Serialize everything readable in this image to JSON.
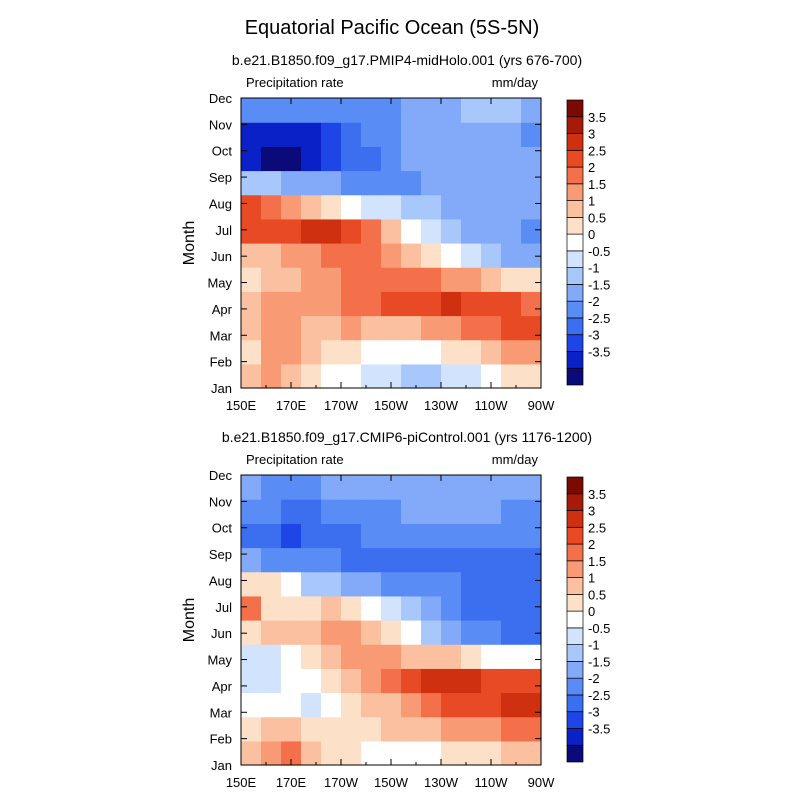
{
  "title": "Equatorial Pacific Ocean (5S-5N)",
  "colors": {
    "scale": [
      "#0a0a78",
      "#0a21c8",
      "#1e46e6",
      "#3c6ef0",
      "#5a8cf5",
      "#82aaf8",
      "#a8c8fb",
      "#d2e3fd",
      "#ffffff",
      "#fde0c8",
      "#fbc0a0",
      "#f89a74",
      "#f3704a",
      "#e84a25",
      "#cf3010",
      "#a81a08",
      "#7a0a02"
    ]
  },
  "chart_data": [
    {
      "type": "heatmap",
      "name": "panel-top",
      "subtitle": "b.e21.B1850.f09_g17.PMIP4-midHolo.001 (yrs 676-700)",
      "left_label": "Precipitation rate",
      "right_label": "mm/day",
      "ylabel": "Month",
      "xticks": [
        "150E",
        "170E",
        "170W",
        "150W",
        "130W",
        "110W",
        "90W"
      ],
      "yticks": [
        "Jan",
        "Feb",
        "Mar",
        "Apr",
        "May",
        "Jun",
        "Jul",
        "Aug",
        "Sep",
        "Oct",
        "Nov",
        "Dec"
      ],
      "colorbar_labels": [
        "3.5",
        "3",
        "2.5",
        "2",
        "1.5",
        "1",
        "0.5",
        "0",
        "-0.5",
        "-1",
        "-1.5",
        "-2",
        "-2.5",
        "-3",
        "-3.5"
      ],
      "values": [
        [
          1.2,
          1.8,
          1.5,
          0.8,
          0.4,
          0.2,
          -0.1,
          -0.4,
          -0.6,
          -0.5,
          -0.4,
          -0.1,
          0.3,
          0.6,
          1.0
        ],
        [
          1.0,
          1.6,
          2.0,
          1.3,
          1.0,
          0.8,
          0.5,
          0.3,
          0.4,
          0.5,
          0.6,
          0.8,
          1.2,
          1.6,
          2.0
        ],
        [
          1.3,
          1.7,
          1.6,
          1.4,
          1.5,
          1.6,
          1.3,
          1.1,
          1.3,
          1.6,
          1.9,
          2.2,
          2.5,
          2.6,
          2.7
        ],
        [
          1.4,
          1.6,
          1.7,
          1.8,
          2.0,
          2.3,
          2.5,
          2.6,
          2.8,
          3.0,
          3.1,
          3.0,
          2.8,
          2.6,
          2.4
        ],
        [
          1.0,
          1.2,
          1.4,
          1.7,
          2.0,
          2.3,
          2.4,
          2.5,
          2.4,
          2.2,
          1.9,
          1.6,
          1.3,
          1.0,
          0.8
        ],
        [
          1.1,
          1.3,
          1.6,
          1.9,
          2.2,
          2.3,
          2.2,
          1.9,
          1.5,
          1.0,
          0.4,
          -0.3,
          -0.8,
          -1.1,
          -1.3
        ],
        [
          3.0,
          2.6,
          2.9,
          3.2,
          3.3,
          2.8,
          2.2,
          1.4,
          0.5,
          -0.3,
          -0.8,
          -1.1,
          -1.3,
          -1.4,
          -1.5
        ],
        [
          2.6,
          2.2,
          1.8,
          1.4,
          1.0,
          0.5,
          0.0,
          -0.4,
          -0.7,
          -0.9,
          -1.1,
          -1.2,
          -1.3,
          -1.4,
          -1.4
        ],
        [
          -0.6,
          -0.9,
          -1.1,
          -1.3,
          -1.4,
          -1.5,
          -1.5,
          -1.5,
          -1.5,
          -1.4,
          -1.3,
          -1.3,
          -1.2,
          -1.2,
          -1.2
        ],
        [
          -3.3,
          -3.6,
          -3.7,
          -3.2,
          -2.7,
          -2.3,
          -2.0,
          -1.6,
          -1.4,
          -1.2,
          -1.1,
          -1.1,
          -1.1,
          -1.1,
          -1.2
        ],
        [
          -3.0,
          -3.4,
          -3.3,
          -3.0,
          -2.6,
          -2.2,
          -1.9,
          -1.6,
          -1.4,
          -1.2,
          -1.1,
          -1.1,
          -1.2,
          -1.3,
          -1.6
        ],
        [
          -1.6,
          -1.7,
          -1.8,
          -1.8,
          -1.8,
          -1.7,
          -1.6,
          -1.5,
          -1.3,
          -1.2,
          -1.0,
          -0.9,
          -0.8,
          -0.9,
          -1.1
        ]
      ]
    },
    {
      "type": "heatmap",
      "name": "panel-bottom",
      "subtitle": "b.e21.B1850.f09_g17.CMIP6-piControl.001 (yrs 1176-1200)",
      "left_label": "Precipitation rate",
      "right_label": "mm/day",
      "ylabel": "Month",
      "xticks": [
        "150E",
        "170E",
        "170W",
        "150W",
        "130W",
        "110W",
        "90W"
      ],
      "yticks": [
        "Jan",
        "Feb",
        "Mar",
        "Apr",
        "May",
        "Jun",
        "Jul",
        "Aug",
        "Sep",
        "Oct",
        "Nov",
        "Dec"
      ],
      "colorbar_labels": [
        "3.5",
        "3",
        "2.5",
        "2",
        "1.5",
        "1",
        "0.5",
        "0",
        "-0.5",
        "-1",
        "-1.5",
        "-2",
        "-2.5",
        "-3",
        "-3.5"
      ],
      "values": [
        [
          1.4,
          1.8,
          2.1,
          1.5,
          1.0,
          0.7,
          0.5,
          0.4,
          0.4,
          0.5,
          0.7,
          0.9,
          1.0,
          1.2,
          1.3
        ],
        [
          0.8,
          1.1,
          1.2,
          1.0,
          0.9,
          0.9,
          1.0,
          1.1,
          1.3,
          1.5,
          1.7,
          1.9,
          2.0,
          2.2,
          2.4
        ],
        [
          0.3,
          0.4,
          0.5,
          -0.4,
          0.2,
          0.6,
          1.1,
          1.5,
          1.9,
          2.3,
          2.6,
          2.8,
          3.0,
          3.1,
          3.3
        ],
        [
          -0.3,
          -0.2,
          0.1,
          0.4,
          0.8,
          1.3,
          1.8,
          2.3,
          2.9,
          3.3,
          3.5,
          3.2,
          3.0,
          2.9,
          2.7
        ],
        [
          -0.4,
          -0.3,
          0.2,
          0.7,
          1.2,
          1.6,
          1.8,
          1.7,
          1.5,
          1.3,
          1.1,
          0.8,
          0.5,
          0.3,
          0.1
        ],
        [
          1.0,
          1.1,
          1.2,
          1.4,
          1.7,
          1.8,
          1.5,
          0.9,
          0.1,
          -0.7,
          -1.3,
          -1.6,
          -1.9,
          -2.1,
          -2.3
        ],
        [
          2.2,
          1.0,
          0.7,
          0.9,
          1.2,
          0.8,
          0.2,
          -0.4,
          -0.9,
          -1.3,
          -1.7,
          -2.0,
          -2.2,
          -2.3,
          -2.3
        ],
        [
          0.7,
          0.9,
          0.3,
          -0.5,
          -0.9,
          -1.2,
          -1.4,
          -1.6,
          -1.7,
          -1.8,
          -1.9,
          -2.0,
          -2.1,
          -2.2,
          -2.3
        ],
        [
          -1.3,
          -1.5,
          -1.7,
          -1.8,
          -1.9,
          -2.0,
          -2.0,
          -2.0,
          -2.0,
          -2.0,
          -2.0,
          -2.0,
          -2.0,
          -2.0,
          -2.0
        ],
        [
          -2.4,
          -2.3,
          -2.7,
          -2.4,
          -2.1,
          -2.0,
          -1.9,
          -1.8,
          -1.8,
          -1.8,
          -1.8,
          -1.8,
          -1.8,
          -1.8,
          -1.8
        ],
        [
          -1.8,
          -1.9,
          -2.0,
          -2.0,
          -1.9,
          -1.8,
          -1.6,
          -1.5,
          -1.4,
          -1.4,
          -1.4,
          -1.4,
          -1.4,
          -1.6,
          -1.7
        ],
        [
          -1.4,
          -1.5,
          -1.5,
          -1.5,
          -1.4,
          -1.3,
          -1.2,
          -1.1,
          -1.1,
          -1.1,
          -1.1,
          -1.1,
          -1.2,
          -1.3,
          -1.3
        ]
      ]
    }
  ]
}
